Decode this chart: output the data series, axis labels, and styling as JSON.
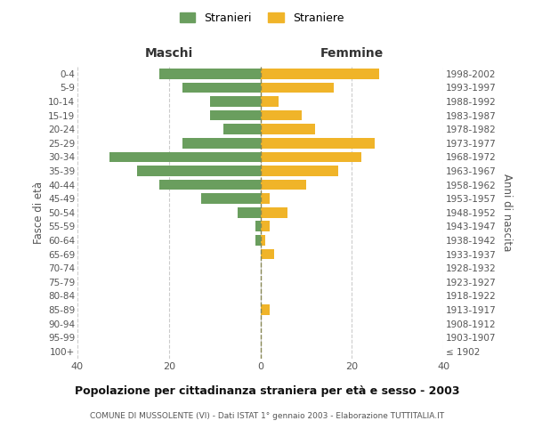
{
  "age_groups": [
    "100+",
    "95-99",
    "90-94",
    "85-89",
    "80-84",
    "75-79",
    "70-74",
    "65-69",
    "60-64",
    "55-59",
    "50-54",
    "45-49",
    "40-44",
    "35-39",
    "30-34",
    "25-29",
    "20-24",
    "15-19",
    "10-14",
    "5-9",
    "0-4"
  ],
  "birth_years": [
    "≤ 1902",
    "1903-1907",
    "1908-1912",
    "1913-1917",
    "1918-1922",
    "1923-1927",
    "1928-1932",
    "1933-1937",
    "1938-1942",
    "1943-1947",
    "1948-1952",
    "1953-1957",
    "1958-1962",
    "1963-1967",
    "1968-1972",
    "1973-1977",
    "1978-1982",
    "1983-1987",
    "1988-1992",
    "1993-1997",
    "1998-2002"
  ],
  "maschi": [
    0,
    0,
    0,
    0,
    0,
    0,
    0,
    0,
    1,
    1,
    5,
    13,
    22,
    27,
    33,
    17,
    8,
    11,
    11,
    17,
    22
  ],
  "femmine": [
    0,
    0,
    0,
    2,
    0,
    0,
    0,
    3,
    1,
    2,
    6,
    2,
    10,
    17,
    22,
    25,
    12,
    9,
    4,
    16,
    26
  ],
  "color_maschi": "#6a9e5e",
  "color_femmine": "#f0b429",
  "title_main": "Popolazione per cittadinanza straniera per età e sesso - 2003",
  "title_sub": "COMUNE DI MUSSOLENTE (VI) - Dati ISTAT 1° gennaio 2003 - Elaborazione TUTTITALIA.IT",
  "label_maschi": "Stranieri",
  "label_femmine": "Straniere",
  "header_left": "Maschi",
  "header_right": "Femmine",
  "ylabel_left": "Fasce di età",
  "ylabel_right": "Anni di nascita",
  "xlim": 40,
  "background_color": "#ffffff",
  "grid_color": "#cccccc",
  "text_color": "#555555",
  "title_color": "#111111"
}
